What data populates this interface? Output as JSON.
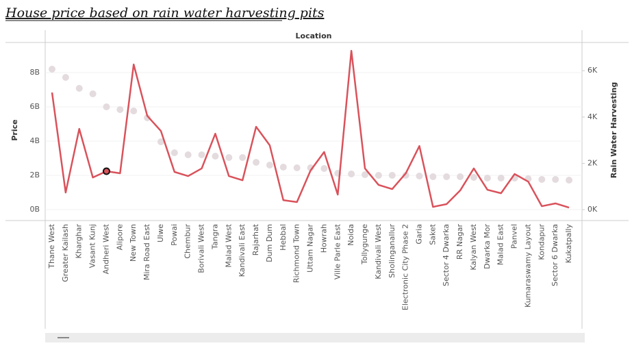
{
  "chart_data": {
    "type": "line",
    "title": "House price based on rain water harvesting pits",
    "header": "Location",
    "ylabel": "Price",
    "y2label": "Rain Water Harvesting",
    "categories": [
      "Thane West",
      "Greater Kailash",
      "Kharghar",
      "Vasant Kunj",
      "Andheri West",
      "Alipore",
      "New Town",
      "Mira Road East",
      "Ulwe",
      "Powai",
      "Chembur",
      "Borivali West",
      "Tangra",
      "Malad West",
      "Kandivali East",
      "Rajarhat",
      "Dum Dum",
      "Hebbal",
      "Richmond Town",
      "Uttam Nagar",
      "Howrah",
      "Ville Parle East",
      "Noida",
      "Tollygunge",
      "Kandivali West",
      "Sholinganallur",
      "Electronic City Phase 2",
      "Garia",
      "Saket",
      "Sector 4 Dwarka",
      "RR Nagar",
      "Kalyan West",
      "Dwarka Mor",
      "Malad East",
      "Panvel",
      "Kumaraswamy Layout",
      "Kondapur",
      "Sector 6 Dwarka",
      "Kukatpally"
    ],
    "series": [
      {
        "type": "circle",
        "color": "#e4dbde",
        "values": [
          8200000000,
          7720000000,
          7080000000,
          6760000000,
          6000000000,
          5840000000,
          5760000000,
          5360000000,
          3960000000,
          3320000000,
          3200000000,
          3200000000,
          3120000000,
          3040000000,
          3040000000,
          2760000000,
          2600000000,
          2480000000,
          2440000000,
          2440000000,
          2400000000,
          2120000000,
          2080000000,
          2040000000,
          2000000000,
          2000000000,
          2000000000,
          1960000000,
          1920000000,
          1920000000,
          1920000000,
          1880000000,
          1840000000,
          1840000000,
          1840000000,
          1800000000,
          1760000000,
          1760000000,
          1720000000
        ]
      },
      {
        "type": "line",
        "axis": "y2",
        "color": "#d9525b",
        "values": [
          5060,
          740,
          3490,
          1390,
          1660,
          1570,
          6270,
          4050,
          3400,
          1630,
          1450,
          1780,
          3280,
          1450,
          1270,
          3580,
          2780,
          410,
          330,
          1690,
          2490,
          650,
          6860,
          1780,
          1070,
          890,
          1570,
          2750,
          120,
          240,
          830,
          1780,
          860,
          710,
          1540,
          1210,
          150,
          270,
          90
        ]
      }
    ],
    "highlight_index": 4,
    "ylim": [
      -640000000,
      9760000000
    ],
    "yticks": [
      {
        "value": 0,
        "label": "0B"
      },
      {
        "value": 2000000000,
        "label": "2B"
      },
      {
        "value": 4000000000,
        "label": "4B"
      },
      {
        "value": 6000000000,
        "label": "6B"
      },
      {
        "value": 8000000000,
        "label": "8B"
      }
    ],
    "y2lim": [
      -470,
      7220
    ],
    "y2ticks": [
      {
        "value": 0,
        "label": "0K"
      },
      {
        "value": 2000,
        "label": "2K"
      },
      {
        "value": 4000,
        "label": "4K"
      },
      {
        "value": 6000,
        "label": "6K"
      }
    ],
    "grid": true
  }
}
